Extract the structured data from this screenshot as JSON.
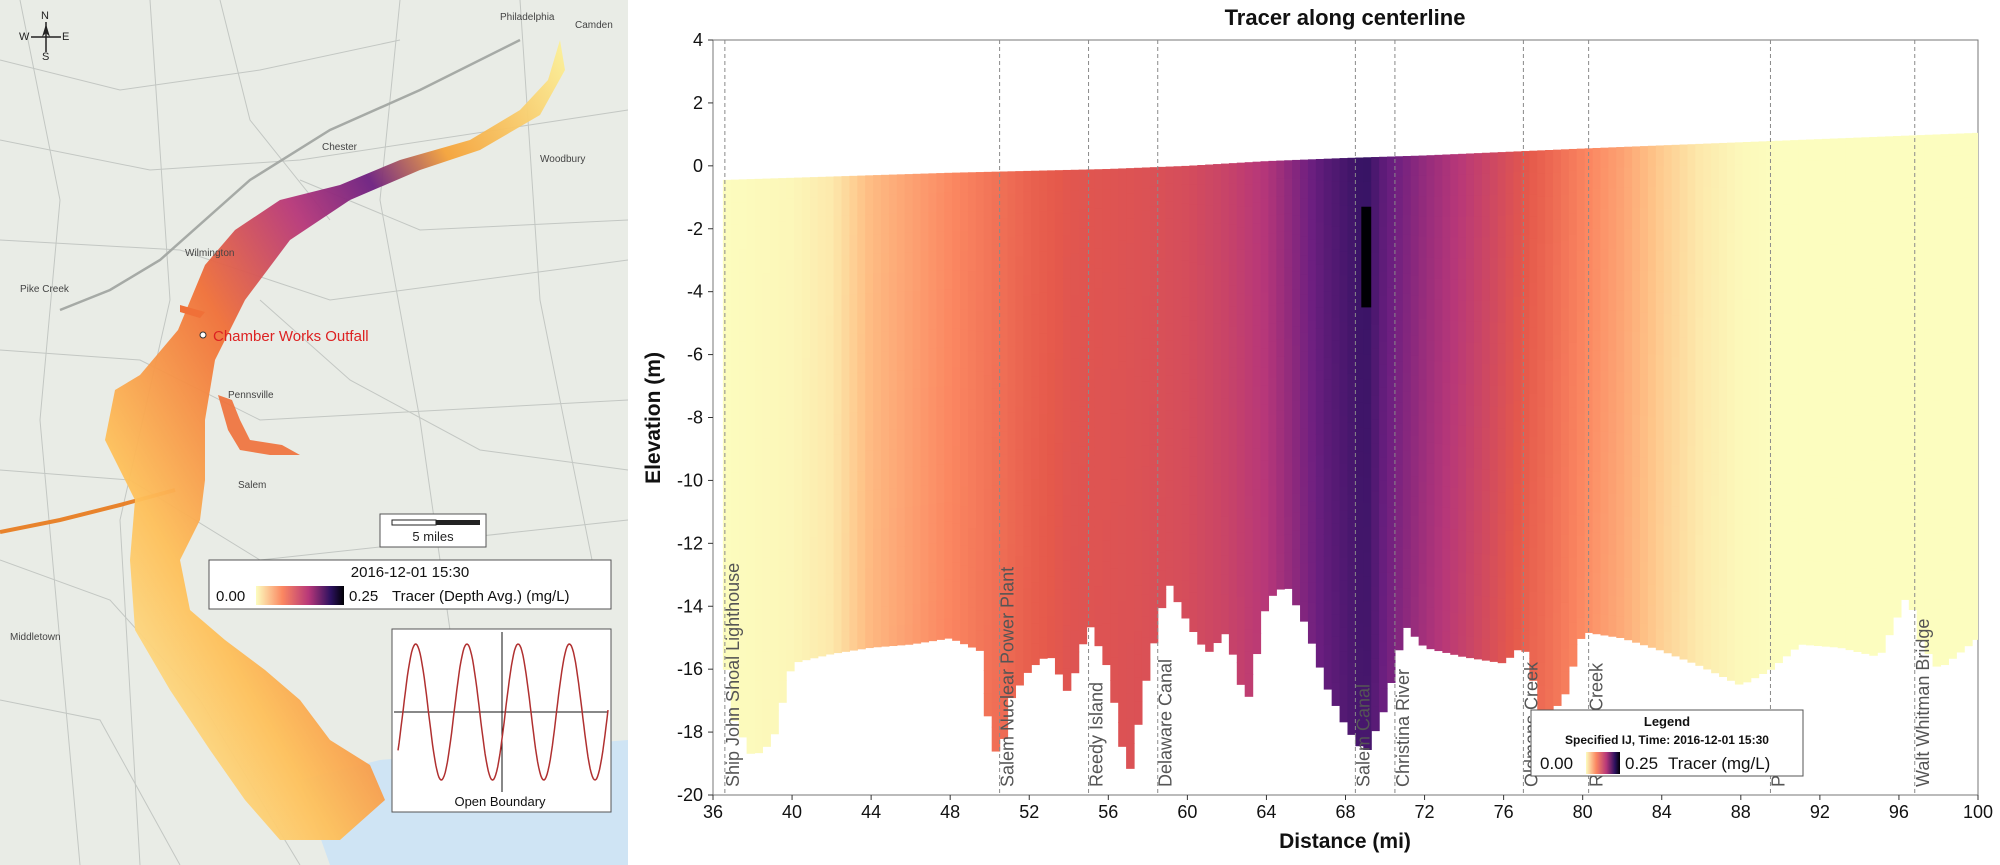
{
  "map": {
    "compass": {
      "n": "N",
      "s": "S",
      "e": "E",
      "w": "W"
    },
    "place_labels": [
      {
        "text": "Philadelphia",
        "x": 500,
        "y": 20,
        "fill": "#444"
      },
      {
        "text": "Camden",
        "x": 575,
        "y": 28,
        "fill": "#444"
      },
      {
        "text": "Chester",
        "x": 322,
        "y": 150,
        "fill": "#444"
      },
      {
        "text": "Wilmington",
        "x": 185,
        "y": 256,
        "fill": "#444"
      },
      {
        "text": "Salem",
        "x": 238,
        "y": 488,
        "fill": "#444"
      },
      {
        "text": "Pike Creek",
        "x": 20,
        "y": 292,
        "fill": "#444"
      },
      {
        "text": "Middletown",
        "x": 10,
        "y": 640,
        "fill": "#444"
      },
      {
        "text": "Woodbury",
        "x": 540,
        "y": 162,
        "fill": "#444"
      },
      {
        "text": "Pennsville",
        "x": 228,
        "y": 398,
        "fill": "#444"
      }
    ],
    "outfall_label": "Chamber Works Outfall",
    "scale_label": "5 miles",
    "legend": {
      "time": "2016-12-01 15:30",
      "min": "0.00",
      "max": "0.25",
      "label": "Tracer (Depth Avg.) (mg/L)"
    },
    "inset_label": "Open Boundary",
    "colors": {
      "water": "#cfe4f4",
      "land": "#e9ece6",
      "road": "#bfc3c0",
      "highway": "#e8832c",
      "outfall_text": "#dd2222"
    }
  },
  "chart_data": {
    "type": "heatmap",
    "title": "Tracer along centerline",
    "xlabel": "Distance (mi)",
    "ylabel": "Elevation (m)",
    "xlim": [
      36,
      100
    ],
    "ylim": [
      -20,
      4
    ],
    "x_ticks": [
      36,
      40,
      44,
      48,
      52,
      56,
      60,
      64,
      68,
      72,
      76,
      80,
      84,
      88,
      92,
      96,
      100
    ],
    "y_ticks": [
      4,
      2,
      0,
      -2,
      -4,
      -6,
      -8,
      -10,
      -12,
      -14,
      -16,
      -18,
      -20
    ],
    "colorscale": {
      "min": 0,
      "max": 0.25,
      "stops": [
        "#fcfdbf",
        "#fec287",
        "#fb8761",
        "#e5594b",
        "#b73779",
        "#6d1f80",
        "#2c115f",
        "#000004"
      ]
    },
    "water_surface": [
      [
        36.5,
        -0.45
      ],
      [
        48,
        -0.22
      ],
      [
        56,
        -0.1
      ],
      [
        60,
        0.0
      ],
      [
        64,
        0.15
      ],
      [
        68,
        0.25
      ],
      [
        72,
        0.33
      ],
      [
        80,
        0.55
      ],
      [
        88,
        0.75
      ],
      [
        96,
        0.95
      ],
      [
        100,
        1.05
      ]
    ],
    "bed": [
      [
        36.5,
        -15.0
      ],
      [
        37,
        -17.5
      ],
      [
        38,
        -18.8
      ],
      [
        39,
        -18.3
      ],
      [
        40,
        -15.8
      ],
      [
        42,
        -15.5
      ],
      [
        44,
        -15.3
      ],
      [
        46,
        -15.2
      ],
      [
        48,
        -15.0
      ],
      [
        49.5,
        -15.4
      ],
      [
        50,
        -18.0
      ],
      [
        50.5,
        -19.0
      ],
      [
        51,
        -17.0
      ],
      [
        52,
        -16.0
      ],
      [
        53,
        -15.5
      ],
      [
        54,
        -16.8
      ],
      [
        55,
        -14.5
      ],
      [
        56,
        -16.0
      ],
      [
        57,
        -19.5
      ],
      [
        58,
        -16.0
      ],
      [
        59,
        -13.2
      ],
      [
        60,
        -14.5
      ],
      [
        61,
        -15.5
      ],
      [
        62,
        -14.8
      ],
      [
        63,
        -17.2
      ],
      [
        64,
        -13.8
      ],
      [
        65,
        -13.3
      ],
      [
        66,
        -14.6
      ],
      [
        67,
        -16.5
      ],
      [
        68,
        -17.8
      ],
      [
        69,
        -18.7
      ],
      [
        70,
        -17.2
      ],
      [
        71,
        -14.6
      ],
      [
        72,
        -15.3
      ],
      [
        74,
        -15.6
      ],
      [
        76,
        -15.8
      ],
      [
        77,
        -15.2
      ],
      [
        78,
        -17.5
      ],
      [
        79,
        -17.0
      ],
      [
        80,
        -14.8
      ],
      [
        82,
        -15.0
      ],
      [
        84,
        -15.4
      ],
      [
        86,
        -15.9
      ],
      [
        88,
        -16.5
      ],
      [
        89.5,
        -16.0
      ],
      [
        91,
        -15.2
      ],
      [
        93,
        -15.3
      ],
      [
        95,
        -15.6
      ],
      [
        96.5,
        -13.5
      ],
      [
        97,
        -15.0
      ],
      [
        98,
        -16.0
      ],
      [
        100,
        -15.0
      ]
    ],
    "profile": [
      [
        36,
        0.0
      ],
      [
        40,
        0.004
      ],
      [
        42,
        0.012
      ],
      [
        44,
        0.04
      ],
      [
        46,
        0.055
      ],
      [
        48,
        0.07
      ],
      [
        50,
        0.085
      ],
      [
        52,
        0.1
      ],
      [
        54,
        0.11
      ],
      [
        56,
        0.112
      ],
      [
        58,
        0.115
      ],
      [
        60,
        0.12
      ],
      [
        62,
        0.13
      ],
      [
        64,
        0.145
      ],
      [
        65,
        0.16
      ],
      [
        66,
        0.175
      ],
      [
        67,
        0.19
      ],
      [
        68,
        0.2
      ],
      [
        69,
        0.21
      ],
      [
        70,
        0.185
      ],
      [
        72,
        0.16
      ],
      [
        74,
        0.14
      ],
      [
        76,
        0.12
      ],
      [
        78,
        0.1
      ],
      [
        80,
        0.075
      ],
      [
        82,
        0.055
      ],
      [
        84,
        0.03
      ],
      [
        86,
        0.012
      ],
      [
        88,
        0.003
      ],
      [
        90,
        0.0
      ],
      [
        100,
        0.0
      ]
    ],
    "plume": {
      "x": [
        68.8,
        69.3
      ],
      "y": [
        -4.5,
        -1.3
      ],
      "value": 0.25
    },
    "landmarks": [
      {
        "x": 36.6,
        "label": "Ship John Shoal Lighthouse"
      },
      {
        "x": 50.5,
        "label": "Salem Nuclear Power Plant"
      },
      {
        "x": 55.0,
        "label": "Reedy Island"
      },
      {
        "x": 58.5,
        "label": "Delaware Canal"
      },
      {
        "x": 68.5,
        "label": "Salem Canal"
      },
      {
        "x": 70.5,
        "label": "Christina River"
      },
      {
        "x": 77.0,
        "label": "Oldmans Creek"
      },
      {
        "x": 80.3,
        "label": "Raccoon Creek"
      },
      {
        "x": 89.5,
        "label": "PHL"
      },
      {
        "x": 96.8,
        "label": "Walt Whitman Bridge"
      }
    ],
    "legend": {
      "title": "Legend",
      "subtitle": "Specified IJ, Time: 2016-12-01 15:30",
      "min": "0.00",
      "max": "0.25",
      "label": "Tracer (mg/L)"
    }
  }
}
